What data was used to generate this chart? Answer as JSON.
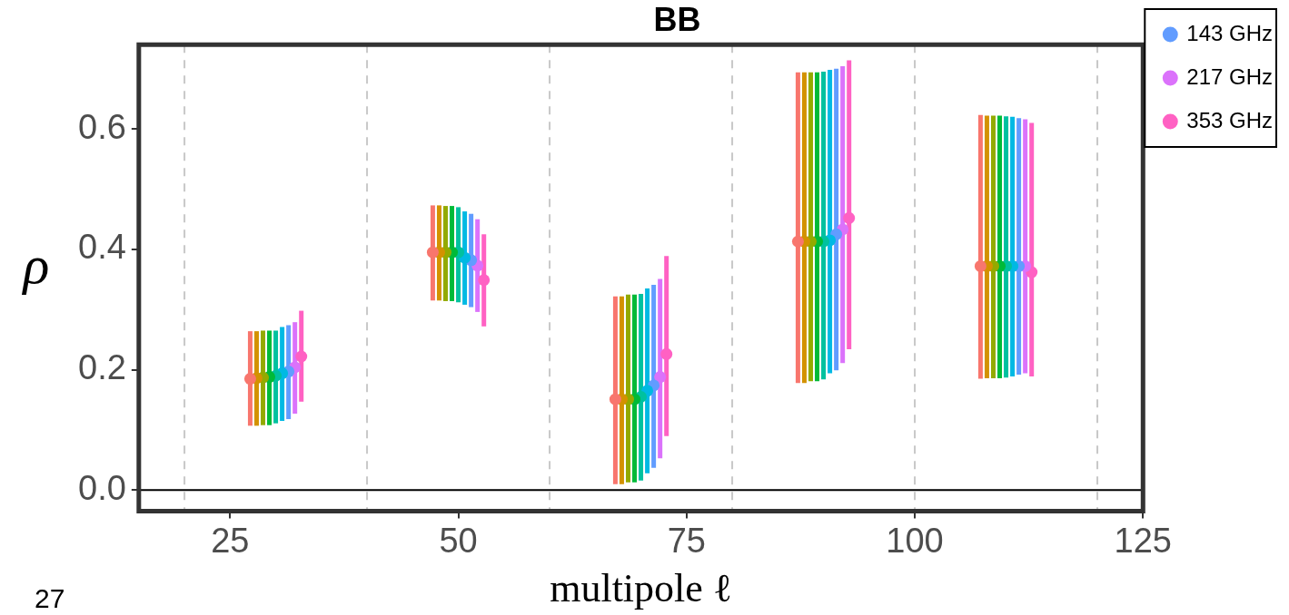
{
  "chart_data": {
    "type": "scatter",
    "title": "BB",
    "xlabel": "multipole ℓ",
    "ylabel": "ρ",
    "annotations": [
      "27"
    ],
    "xlim": [
      15,
      125
    ],
    "xticks": [
      25,
      50,
      75,
      100,
      125
    ],
    "ylim": [
      -0.035,
      0.74
    ],
    "yticks": [
      {
        "value": 0,
        "label": "0.0"
      },
      {
        "value": 0.2,
        "label": "0.2"
      },
      {
        "value": 0.4,
        "label": "0.4"
      },
      {
        "value": 0.6,
        "label": "0.6"
      }
    ],
    "grid": false,
    "legend": "top right",
    "marker": "circle",
    "ref_lines": [
      {
        "axis": "x",
        "value": 20,
        "color": "#c8c8c8",
        "line_style": "dashed"
      },
      {
        "axis": "x",
        "value": 40,
        "color": "#c8c8c8",
        "line_style": "dashed"
      },
      {
        "axis": "x",
        "value": 60,
        "color": "#c8c8c8",
        "line_style": "dashed"
      },
      {
        "axis": "x",
        "value": 80,
        "color": "#c8c8c8",
        "line_style": "dashed"
      },
      {
        "axis": "x",
        "value": 100,
        "color": "#c8c8c8",
        "line_style": "dashed"
      },
      {
        "axis": "x",
        "value": 120,
        "color": "#c8c8c8",
        "line_style": "dashed"
      },
      {
        "axis": "y",
        "value": 0,
        "color": "#000000",
        "line_style": "solid"
      }
    ],
    "series": [
      {
        "color": "#f8766d",
        "x": [
          27.2,
          47.2,
          67.2,
          87.2,
          107.2
        ],
        "values": [
          0.185,
          0.395,
          0.151,
          0.413,
          0.372
        ],
        "errors": [
          [
            0.107,
            0.264
          ],
          [
            0.315,
            0.473
          ],
          [
            0.01,
            0.322
          ],
          [
            0.178,
            0.694
          ],
          [
            0.185,
            0.623
          ]
        ]
      },
      {
        "color": "#d39200",
        "x": [
          27.9,
          47.9,
          67.9,
          87.9,
          107.9
        ],
        "values": [
          0.186,
          0.395,
          0.151,
          0.413,
          0.372
        ],
        "errors": [
          [
            0.107,
            0.264
          ],
          [
            0.315,
            0.473
          ],
          [
            0.01,
            0.322
          ],
          [
            0.178,
            0.694
          ],
          [
            0.186,
            0.622
          ]
        ]
      },
      {
        "color": "#93aa00",
        "x": [
          28.6,
          48.6,
          68.6,
          88.6,
          108.6
        ],
        "values": [
          0.187,
          0.395,
          0.151,
          0.413,
          0.372
        ],
        "errors": [
          [
            0.108,
            0.265
          ],
          [
            0.314,
            0.472
          ],
          [
            0.013,
            0.325
          ],
          [
            0.181,
            0.694
          ],
          [
            0.186,
            0.622
          ]
        ]
      },
      {
        "color": "#00ba38",
        "x": [
          29.3,
          49.3,
          69.3,
          89.3,
          109.3
        ],
        "values": [
          0.188,
          0.395,
          0.151,
          0.413,
          0.372
        ],
        "errors": [
          [
            0.108,
            0.265
          ],
          [
            0.314,
            0.472
          ],
          [
            0.013,
            0.325
          ],
          [
            0.181,
            0.694
          ],
          [
            0.186,
            0.622
          ]
        ]
      },
      {
        "color": "#00c19f",
        "x": [
          30,
          50,
          70,
          90,
          110
        ],
        "values": [
          0.19,
          0.395,
          0.155,
          0.413,
          0.372
        ],
        "errors": [
          [
            0.111,
            0.265
          ],
          [
            0.312,
            0.47
          ],
          [
            0.016,
            0.326
          ],
          [
            0.184,
            0.695
          ],
          [
            0.187,
            0.621
          ]
        ]
      },
      {
        "color": "#00b9e3",
        "x": [
          30.7,
          50.7,
          70.7,
          90.7,
          110.7
        ],
        "values": [
          0.194,
          0.386,
          0.165,
          0.415,
          0.372
        ],
        "errors": [
          [
            0.115,
            0.271
          ],
          [
            0.308,
            0.463
          ],
          [
            0.028,
            0.335
          ],
          [
            0.194,
            0.698
          ],
          [
            0.189,
            0.62
          ]
        ]
      },
      {
        "name": "143 GHz",
        "color": "#619cff",
        "x": [
          31.4,
          51.4,
          71.4,
          91.4,
          111.4
        ],
        "values": [
          0.197,
          0.382,
          0.174,
          0.425,
          0.372
        ],
        "errors": [
          [
            0.118,
            0.274
          ],
          [
            0.304,
            0.459
          ],
          [
            0.037,
            0.341
          ],
          [
            0.199,
            0.7
          ],
          [
            0.192,
            0.618
          ]
        ]
      },
      {
        "name": "217 GHz",
        "color": "#db72fb",
        "x": [
          32.1,
          52.1,
          72.1,
          92.1,
          112.1
        ],
        "values": [
          0.204,
          0.373,
          0.188,
          0.433,
          0.372
        ],
        "errors": [
          [
            0.127,
            0.279
          ],
          [
            0.296,
            0.45
          ],
          [
            0.053,
            0.351
          ],
          [
            0.211,
            0.704
          ],
          [
            0.194,
            0.616
          ]
        ]
      },
      {
        "name": "353 GHz",
        "color": "#ff61c3",
        "x": [
          32.8,
          52.8,
          72.8,
          92.8,
          112.8
        ],
        "values": [
          0.222,
          0.349,
          0.226,
          0.452,
          0.362
        ],
        "errors": [
          [
            0.147,
            0.298
          ],
          [
            0.272,
            0.425
          ],
          [
            0.09,
            0.389
          ],
          [
            0.234,
            0.714
          ],
          [
            0.189,
            0.61
          ]
        ]
      }
    ]
  }
}
